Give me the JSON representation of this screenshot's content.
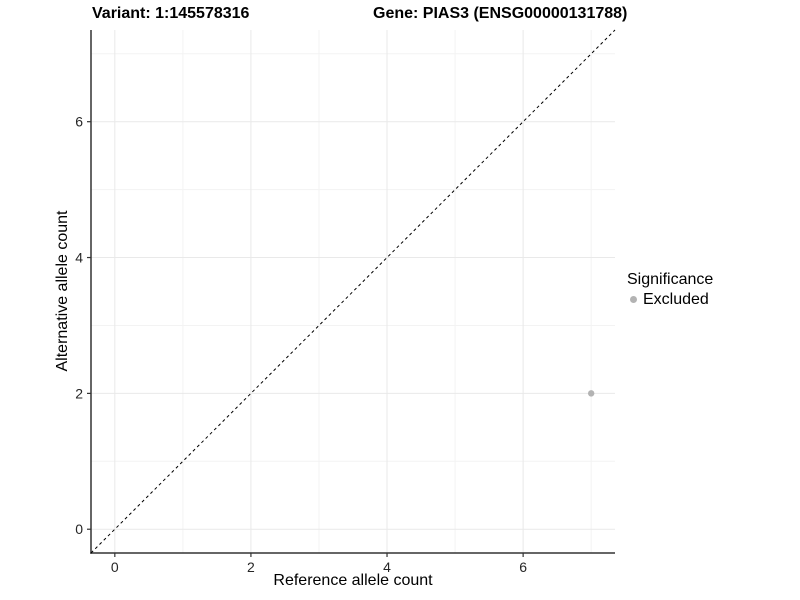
{
  "titles": {
    "variant": "Variant: 1:145578316",
    "gene": "Gene: PIAS3 (ENSG00000131788)"
  },
  "axes": {
    "x_label": "Reference allele count",
    "y_label": "Alternative allele count"
  },
  "legend": {
    "title": "Significance",
    "items": [
      {
        "label": "Excluded",
        "color": "#b3b3b3"
      }
    ]
  },
  "chart_data": {
    "type": "scatter",
    "title_left": "Variant: 1:145578316",
    "title_right": "Gene: PIAS3 (ENSG00000131788)",
    "xlabel": "Reference allele count",
    "ylabel": "Alternative allele count",
    "xlim": [
      -0.35,
      7.35
    ],
    "ylim": [
      -0.35,
      7.35
    ],
    "x_ticks": [
      0,
      2,
      4,
      6
    ],
    "y_ticks": [
      0,
      2,
      4,
      6
    ],
    "x_minor_ticks": [
      1,
      3,
      5,
      7
    ],
    "y_minor_ticks": [
      1,
      3,
      5,
      7
    ],
    "grid": true,
    "legend_position": "right",
    "series": [
      {
        "name": "Excluded",
        "color": "#b3b3b3",
        "points": [
          {
            "x": 7,
            "y": 2
          }
        ]
      }
    ],
    "reference_line": {
      "type": "identity",
      "equation": "y = x",
      "style": "dashed",
      "color": "#000000"
    },
    "colors": {
      "major_grid": "#e9e9e9",
      "minor_grid": "#f3f3f3",
      "axis_line": "#333333",
      "tick_label": "#262626",
      "point": "#b3b3b3"
    }
  }
}
